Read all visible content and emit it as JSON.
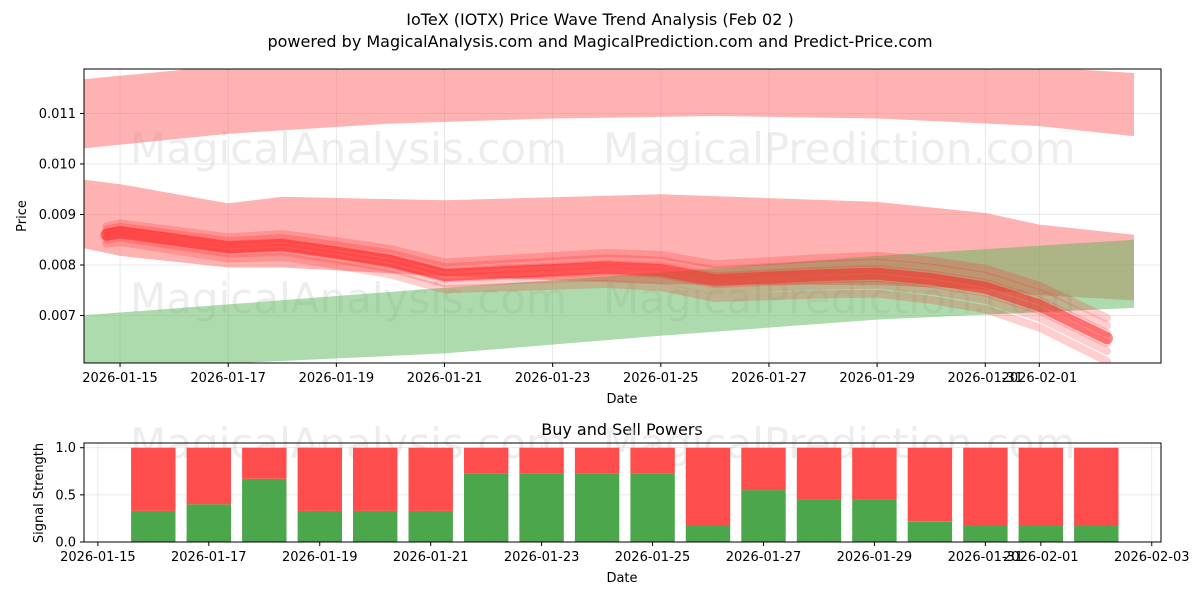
{
  "title": "IoTeX (IOTX) Price Wave Trend Analysis (Feb 02 )",
  "subtitle": "powered by MagicalAnalysis.com and MagicalPrediction.com and Predict-Price.com",
  "watermarks": [
    "MagicalAnalysis.com",
    "MagicalPrediction.com"
  ],
  "chart_data": [
    {
      "type": "line",
      "name": "price-wave-trend",
      "xlabel": "Date",
      "ylabel": "Price",
      "grid": true,
      "xlim": [
        "2026-01-14 08:00",
        "2026-02-03 06:00"
      ],
      "ylim": [
        0.00606,
        0.01188
      ],
      "x_ticks": [
        "2026-01-15",
        "2026-01-17",
        "2026-01-19",
        "2026-01-21",
        "2026-01-23",
        "2026-01-25",
        "2026-01-27",
        "2026-01-29",
        "2026-01-31",
        "2026-02-01"
      ],
      "y_ticks": [
        "0.007",
        "0.008",
        "0.009",
        "0.010",
        "0.011"
      ],
      "colors": {
        "red_band": "#ff6666",
        "green_band": "#5cb85c",
        "trend": "#ff2222"
      },
      "bands": [
        {
          "name": "upper-red-band",
          "color": "red",
          "x": [
            "2026-01-14 06:00",
            "2026-01-17",
            "2026-01-20",
            "2026-01-23",
            "2026-01-26",
            "2026-01-29",
            "2026-02-01",
            "2026-02-02 18:00"
          ],
          "upper": [
            0.01167,
            0.01195,
            0.012,
            0.012,
            0.01198,
            0.01195,
            0.01192,
            0.0118
          ],
          "lower": [
            0.0103,
            0.0106,
            0.0108,
            0.0109,
            0.01095,
            0.0109,
            0.01075,
            0.01055
          ]
        },
        {
          "name": "middle-red-band",
          "color": "red",
          "x": [
            "2026-01-14 06:00",
            "2026-01-15",
            "2026-01-17",
            "2026-01-18",
            "2026-01-21",
            "2026-01-25",
            "2026-01-29",
            "2026-01-31",
            "2026-02-01",
            "2026-02-02 18:00"
          ],
          "upper": [
            0.0097,
            0.0096,
            0.00922,
            0.00935,
            0.00928,
            0.0094,
            0.00925,
            0.00903,
            0.0088,
            0.0086
          ],
          "lower": [
            0.00835,
            0.00818,
            0.00795,
            0.00795,
            0.00778,
            0.00762,
            0.0076,
            0.00752,
            0.0074,
            0.0073
          ]
        },
        {
          "name": "green-band",
          "color": "green",
          "x": [
            "2026-01-14 06:00",
            "2026-01-17",
            "2026-01-21",
            "2026-01-25",
            "2026-01-29",
            "2026-02-02 18:00"
          ],
          "upper": [
            0.007,
            0.00722,
            0.00755,
            0.00785,
            0.00818,
            0.0085
          ],
          "lower": [
            0.0059,
            0.00605,
            0.00625,
            0.0066,
            0.00692,
            0.00715
          ]
        }
      ],
      "trend_series": {
        "name": "price-wave",
        "x": [
          "2026-01-14 18:00",
          "2026-01-15",
          "2026-01-16",
          "2026-01-17",
          "2026-01-18",
          "2026-01-19",
          "2026-01-20",
          "2026-01-21",
          "2026-01-22",
          "2026-01-23",
          "2026-01-24",
          "2026-01-25",
          "2026-01-26",
          "2026-01-27",
          "2026-01-28",
          "2026-01-29",
          "2026-01-30",
          "2026-01-31",
          "2026-02-01",
          "2026-02-02 06:00"
        ],
        "values": [
          0.0086,
          0.00865,
          0.0085,
          0.00835,
          0.0084,
          0.00825,
          0.00808,
          0.0078,
          0.00785,
          0.0079,
          0.00795,
          0.0079,
          0.0077,
          0.00775,
          0.0078,
          0.00783,
          0.00772,
          0.00755,
          0.0072,
          0.00655
        ]
      }
    },
    {
      "type": "bar",
      "name": "buy-and-sell-powers",
      "title": "Buy and Sell Powers",
      "xlabel": "Date",
      "ylabel": "Signal Strength",
      "grid": true,
      "xlim": [
        "2026-01-14 18:00",
        "2026-02-03 04:00"
      ],
      "ylim": [
        0,
        1.05
      ],
      "x_ticks": [
        "2026-01-15",
        "2026-01-17",
        "2026-01-19",
        "2026-01-21",
        "2026-01-23",
        "2026-01-25",
        "2026-01-27",
        "2026-01-29",
        "2026-01-31",
        "2026-02-01",
        "2026-02-03"
      ],
      "y_ticks": [
        "0.0",
        "0.5",
        "1.0"
      ],
      "colors": {
        "buy": "#4ca64c",
        "sell": "#ff4c4c"
      },
      "categories": [
        "2026-01-16",
        "2026-01-17",
        "2026-01-18",
        "2026-01-19",
        "2026-01-20",
        "2026-01-21",
        "2026-01-22",
        "2026-01-23",
        "2026-01-24",
        "2026-01-25",
        "2026-01-26",
        "2026-01-27",
        "2026-01-28",
        "2026-01-29",
        "2026-01-30",
        "2026-01-31",
        "2026-02-01",
        "2026-02-02"
      ],
      "series": [
        {
          "name": "Buy",
          "values": [
            0.33,
            0.4,
            0.67,
            0.33,
            0.33,
            0.33,
            0.73,
            0.73,
            0.73,
            0.73,
            0.17,
            0.55,
            0.45,
            0.45,
            0.22,
            0.17,
            0.17,
            0.17
          ]
        },
        {
          "name": "Sell",
          "values": [
            0.67,
            0.6,
            0.33,
            0.67,
            0.67,
            0.67,
            0.27,
            0.27,
            0.27,
            0.27,
            0.83,
            0.45,
            0.55,
            0.55,
            0.78,
            0.83,
            0.83,
            0.83
          ]
        }
      ]
    }
  ]
}
